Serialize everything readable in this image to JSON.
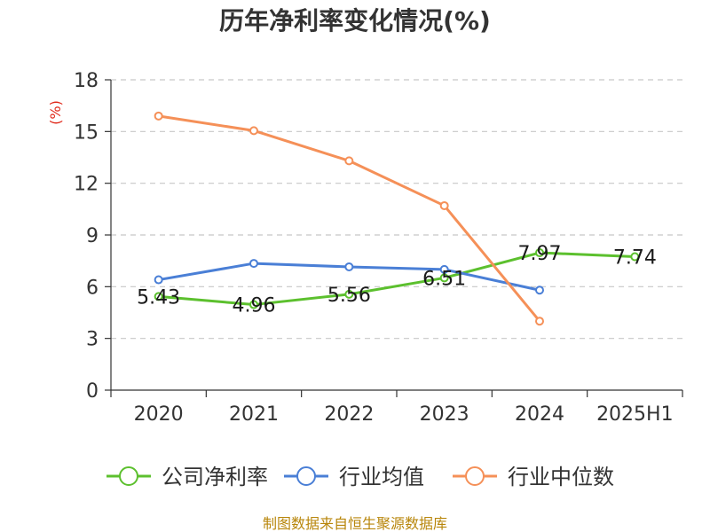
{
  "chart_data": {
    "type": "line",
    "title": "历年净利率变化情况(%)",
    "ylabel": "(%)",
    "categories": [
      "2020",
      "2021",
      "2022",
      "2023",
      "2024",
      "2025H1"
    ],
    "ylim": [
      0,
      18
    ],
    "yticks": [
      0,
      3,
      6,
      9,
      12,
      15,
      18
    ],
    "grid": true,
    "legend_position": "bottom",
    "series": [
      {
        "name": "公司净利率",
        "color": "#5cc02e",
        "values": [
          5.43,
          4.96,
          5.56,
          6.51,
          7.97,
          7.74
        ],
        "labels": [
          "5.43",
          "4.96",
          "5.56",
          "6.51",
          "7.97",
          "7.74"
        ]
      },
      {
        "name": "行业均值",
        "color": "#4a7fd6",
        "values": [
          6.4,
          7.35,
          7.15,
          7.0,
          5.8,
          null
        ]
      },
      {
        "name": "行业中位数",
        "color": "#f59058",
        "values": [
          15.9,
          15.05,
          13.3,
          10.7,
          4.0,
          null
        ]
      }
    ]
  },
  "footer": {
    "source": "制图数据来自恒生聚源数据库"
  }
}
